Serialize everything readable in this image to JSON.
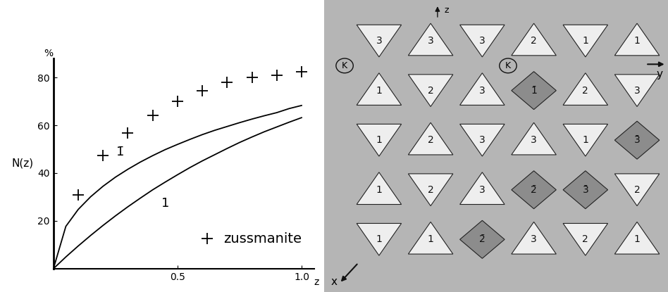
{
  "chart_data": {
    "type": "line",
    "y_label": "N(z)",
    "y_unit": "%",
    "x_label": "z",
    "xlim": [
      0,
      1.05
    ],
    "xticks": [
      0.5,
      1.0
    ],
    "ylim": [
      0,
      88
    ],
    "yticks": [
      20,
      40,
      60,
      80
    ],
    "grid": false,
    "legend": "lower right",
    "series": [
      {
        "name": "1̄",
        "type": "line",
        "color": "#000000",
        "marker": "none",
        "line_style": "solid",
        "x": [
          0,
          0.05,
          0.1,
          0.15,
          0.2,
          0.25,
          0.3,
          0.35,
          0.4,
          0.45,
          0.5,
          0.55,
          0.6,
          0.65,
          0.7,
          0.75,
          0.8,
          0.85,
          0.9,
          0.95,
          1.0
        ],
        "values": [
          0,
          17.7,
          24.8,
          30.1,
          34.5,
          38.3,
          41.6,
          44.6,
          47.3,
          49.8,
          52.0,
          54.1,
          56.1,
          57.9,
          59.5,
          61.1,
          62.6,
          64.0,
          65.3,
          67.0,
          68.3
        ]
      },
      {
        "name": "1",
        "type": "line",
        "color": "#000000",
        "marker": "none",
        "line_style": "solid",
        "x": [
          0,
          0.05,
          0.1,
          0.15,
          0.2,
          0.25,
          0.3,
          0.35,
          0.4,
          0.45,
          0.5,
          0.55,
          0.6,
          0.65,
          0.7,
          0.75,
          0.8,
          0.85,
          0.9,
          0.95,
          1.0
        ],
        "values": [
          0,
          4.9,
          9.5,
          13.9,
          18.1,
          22.1,
          25.9,
          29.5,
          33.0,
          36.2,
          39.3,
          42.3,
          45.1,
          47.7,
          50.3,
          52.8,
          55.1,
          57.3,
          59.3,
          61.3,
          63.2
        ]
      },
      {
        "name": "zussmanite",
        "type": "scatter",
        "color": "#000000",
        "marker": "+",
        "line_style": "none",
        "x": [
          0.1,
          0.2,
          0.3,
          0.4,
          0.5,
          0.6,
          0.7,
          0.8,
          0.9,
          1.0
        ],
        "values": [
          31,
          47.5,
          56.7,
          64,
          70,
          74.4,
          78,
          80,
          81,
          82.5
        ]
      }
    ]
  },
  "structure_model": {
    "axis_labels": [
      "x",
      "y",
      "z"
    ],
    "atom_label": "K",
    "polyhedra": [
      "3",
      "3",
      "3",
      "2",
      "1",
      "1",
      "1",
      "2",
      "3",
      "1̄",
      "2",
      "3",
      "1",
      "2",
      "3",
      "3",
      "1",
      "3̄",
      "1",
      "2",
      "3",
      "2̄",
      "3̄",
      "2",
      "1",
      "1",
      "2̄",
      "3",
      "2",
      "1"
    ]
  }
}
